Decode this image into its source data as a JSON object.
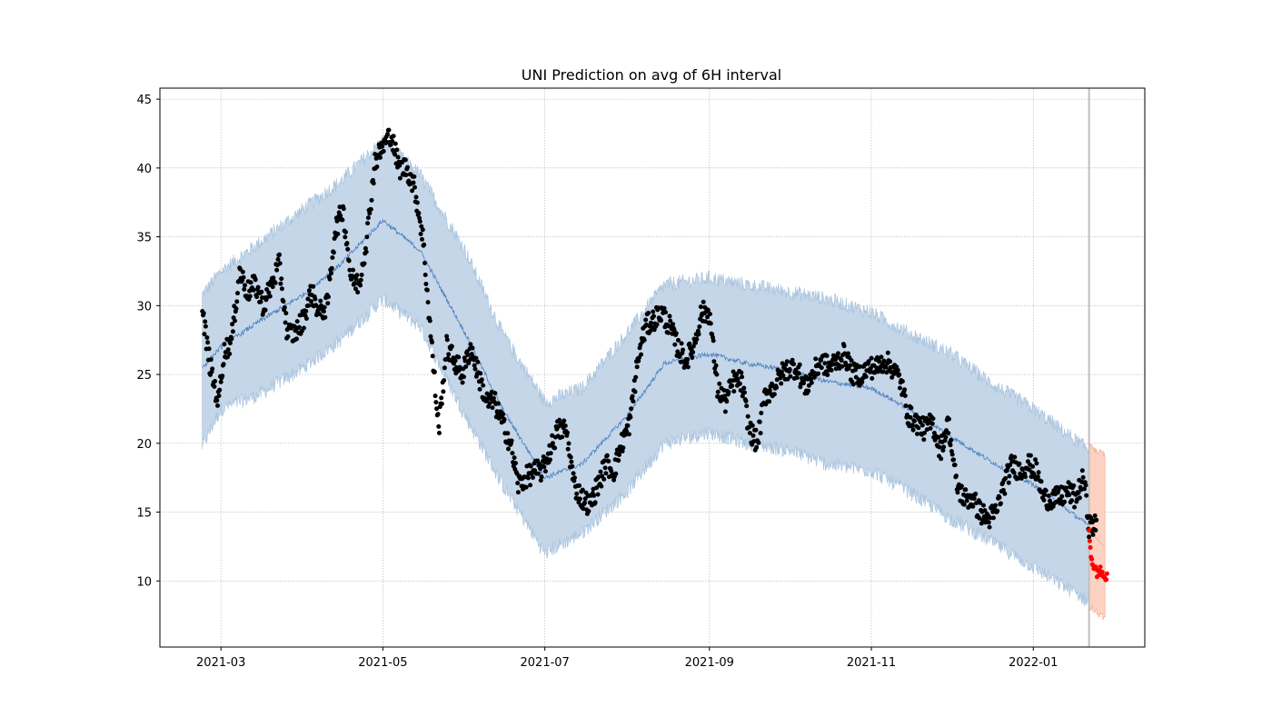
{
  "chart_data": {
    "type": "scatter",
    "title": "UNI Prediction on avg of 6H interval",
    "xlabel": "",
    "ylabel": "",
    "x_axis_type": "date",
    "xlim": [
      "2021-02-06",
      "2022-02-12"
    ],
    "ylim": [
      5.2,
      45.8
    ],
    "x_ticks": [
      {
        "date": "2021-03-01",
        "label": "2021-03"
      },
      {
        "date": "2021-05-01",
        "label": "2021-05"
      },
      {
        "date": "2021-07-01",
        "label": "2021-07"
      },
      {
        "date": "2021-09-01",
        "label": "2021-09"
      },
      {
        "date": "2021-11-01",
        "label": "2021-11"
      },
      {
        "date": "2022-01-01",
        "label": "2022-01"
      }
    ],
    "y_ticks": [
      10,
      15,
      20,
      25,
      30,
      35,
      40,
      45
    ],
    "grid": true,
    "forecast_start": "2022-01-22",
    "colors": {
      "band_fill": "#c5d6e8",
      "band_edge": "#a8c3dd",
      "trend_line": "#4a7fbf",
      "observed_points": "#000000",
      "forecast_band_fill": "#fdd2c2",
      "forecast_band_edge": "#f5a88c",
      "forecast_points": "#ff0000",
      "forecast_marker": "#bfbfbf",
      "grid": "#b0b0b0"
    },
    "series": [
      {
        "role": "confidence_band",
        "x": [
          "2021-02-22",
          "2021-03-01",
          "2021-03-15",
          "2021-04-01",
          "2021-04-15",
          "2021-05-01",
          "2021-05-15",
          "2021-06-01",
          "2021-06-15",
          "2021-07-01",
          "2021-07-15",
          "2021-08-01",
          "2021-08-15",
          "2021-09-01",
          "2021-09-15",
          "2021-10-01",
          "2021-10-15",
          "2021-11-01",
          "2021-11-15",
          "2021-12-01",
          "2021-12-15",
          "2022-01-01",
          "2022-01-22"
        ],
        "lower": [
          19.8,
          22.5,
          23.5,
          25.5,
          27.5,
          30.5,
          28.5,
          22,
          17,
          12,
          13.5,
          16.5,
          20,
          20.8,
          20,
          19.5,
          18.5,
          18,
          16.5,
          14.5,
          13,
          11,
          8.5
        ],
        "upper": [
          30.8,
          32.5,
          34.5,
          37,
          39,
          42,
          39.5,
          34,
          28,
          23,
          24,
          28,
          31.5,
          32,
          31.5,
          31,
          30.5,
          29.5,
          28,
          26.5,
          24.5,
          22.5,
          19.5
        ]
      },
      {
        "role": "trend",
        "x": [
          "2021-02-22",
          "2021-03-01",
          "2021-03-15",
          "2021-04-01",
          "2021-04-15",
          "2021-05-01",
          "2021-05-15",
          "2021-06-01",
          "2021-06-15",
          "2021-07-01",
          "2021-07-15",
          "2021-08-01",
          "2021-08-15",
          "2021-09-01",
          "2021-09-15",
          "2021-10-01",
          "2021-10-15",
          "2021-11-01",
          "2021-11-15",
          "2021-12-01",
          "2021-12-15",
          "2022-01-01",
          "2022-01-22"
        ],
        "y": [
          25.5,
          27,
          28.8,
          30.8,
          33,
          36.2,
          34,
          28,
          22.5,
          17.5,
          18.5,
          22,
          25.8,
          26.5,
          25.8,
          25.3,
          24.5,
          24,
          22.5,
          20.5,
          18.8,
          17,
          14
        ]
      },
      {
        "role": "forecast_band",
        "x": [
          "2022-01-22",
          "2022-01-25",
          "2022-01-28"
        ],
        "lower": [
          8.2,
          7.7,
          7.3
        ],
        "upper": [
          20,
          19.4,
          19.2
        ]
      },
      {
        "role": "forecast_trend",
        "x": [
          "2022-01-22",
          "2022-01-25",
          "2022-01-28"
        ],
        "y": [
          14,
          13,
          12.5
        ]
      },
      {
        "role": "observed",
        "x": [
          "2021-02-22",
          "2021-02-25",
          "2021-02-28",
          "2021-03-02",
          "2021-03-05",
          "2021-03-08",
          "2021-03-11",
          "2021-03-14",
          "2021-03-17",
          "2021-03-20",
          "2021-03-23",
          "2021-03-26",
          "2021-03-29",
          "2021-04-01",
          "2021-04-04",
          "2021-04-07",
          "2021-04-10",
          "2021-04-13",
          "2021-04-16",
          "2021-04-19",
          "2021-04-22",
          "2021-04-25",
          "2021-04-28",
          "2021-05-01",
          "2021-05-04",
          "2021-05-07",
          "2021-05-10",
          "2021-05-13",
          "2021-05-16",
          "2021-05-19",
          "2021-05-22",
          "2021-05-25",
          "2021-05-28",
          "2021-05-31",
          "2021-06-03",
          "2021-06-06",
          "2021-06-09",
          "2021-06-12",
          "2021-06-15",
          "2021-06-18",
          "2021-06-21",
          "2021-06-24",
          "2021-06-27",
          "2021-06-30",
          "2021-07-03",
          "2021-07-06",
          "2021-07-09",
          "2021-07-12",
          "2021-07-15",
          "2021-07-18",
          "2021-07-21",
          "2021-07-24",
          "2021-07-27",
          "2021-07-30",
          "2021-08-02",
          "2021-08-05",
          "2021-08-08",
          "2021-08-11",
          "2021-08-14",
          "2021-08-17",
          "2021-08-20",
          "2021-08-23",
          "2021-08-26",
          "2021-08-29",
          "2021-09-01",
          "2021-09-04",
          "2021-09-07",
          "2021-09-10",
          "2021-09-13",
          "2021-09-16",
          "2021-09-19",
          "2021-09-22",
          "2021-09-25",
          "2021-09-28",
          "2021-10-01",
          "2021-10-04",
          "2021-10-07",
          "2021-10-10",
          "2021-10-13",
          "2021-10-16",
          "2021-10-19",
          "2021-10-22",
          "2021-10-25",
          "2021-10-28",
          "2021-10-31",
          "2021-11-03",
          "2021-11-06",
          "2021-11-09",
          "2021-11-12",
          "2021-11-15",
          "2021-11-18",
          "2021-11-21",
          "2021-11-24",
          "2021-11-27",
          "2021-11-30",
          "2021-12-03",
          "2021-12-06",
          "2021-12-09",
          "2021-12-12",
          "2021-12-15",
          "2021-12-18",
          "2021-12-21",
          "2021-12-24",
          "2021-12-27",
          "2021-12-30",
          "2022-01-02",
          "2022-01-05",
          "2022-01-08",
          "2022-01-11",
          "2022-01-14",
          "2022-01-17",
          "2022-01-20",
          "2022-01-22"
        ],
        "y": [
          29.5,
          25.5,
          23,
          26.5,
          27.5,
          32.5,
          31,
          31.5,
          30,
          31.5,
          33,
          28,
          28,
          29,
          31,
          29.5,
          30,
          35.5,
          37,
          32,
          31.5,
          35,
          40.5,
          41.5,
          42.5,
          40,
          40,
          38.5,
          35,
          28,
          21,
          27,
          26,
          25,
          27,
          25,
          23,
          23,
          21.5,
          20,
          17,
          17.5,
          18,
          18,
          19.5,
          21,
          21,
          17,
          16,
          15.5,
          17,
          18.5,
          18,
          20,
          21.5,
          26,
          28.5,
          29,
          29.5,
          28.5,
          27,
          26,
          27,
          29.5,
          29.5,
          24,
          23,
          24.5,
          24.5,
          21,
          20,
          23.5,
          24,
          25,
          25.5,
          25.5,
          24,
          25,
          26,
          25.5,
          26,
          26.5,
          25,
          25,
          25.5,
          25.5,
          26,
          25.5,
          24.5,
          22,
          21.5,
          21,
          21.5,
          19.5,
          21.5,
          17,
          16,
          16,
          15,
          14.5,
          15,
          17,
          18.5,
          18,
          18.5,
          18,
          16,
          16,
          16,
          16.5,
          16,
          17.5,
          14
        ]
      },
      {
        "role": "forecast_observed",
        "x": [
          "2022-01-22",
          "2022-01-23",
          "2022-01-24",
          "2022-01-25",
          "2022-01-26",
          "2022-01-27",
          "2022-01-28"
        ],
        "y": [
          13.5,
          11.5,
          11,
          10.5,
          10.8,
          10.5,
          10.2
        ]
      }
    ]
  }
}
